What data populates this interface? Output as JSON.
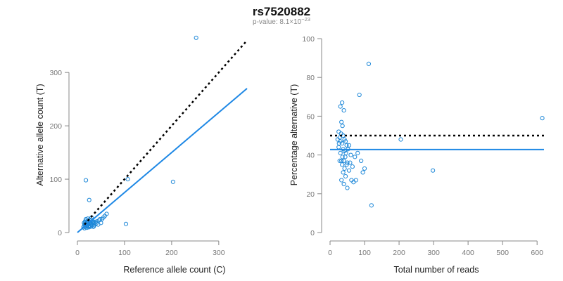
{
  "title": "rs7520882",
  "subtitle_prefix": "p-value: 8.1×10",
  "subtitle_exp": "−23",
  "colors": {
    "points": "#1E88D8",
    "fit": "#1E88E5",
    "reference": "#000000"
  },
  "chart_data": [
    {
      "type": "scatter",
      "xlabel": "Reference allele count (C)",
      "ylabel": "Alternative allele count (T)",
      "xlim": [
        0,
        360
      ],
      "ylim": [
        0,
        370
      ],
      "xticks": [
        0,
        100,
        200,
        300
      ],
      "yticks": [
        0,
        100,
        200,
        300
      ],
      "grid": false,
      "points": [
        [
          18,
          98
        ],
        [
          25,
          61
        ],
        [
          252,
          365
        ],
        [
          107,
          100
        ],
        [
          203,
          95
        ],
        [
          103,
          16
        ],
        [
          13,
          10
        ],
        [
          14,
          12
        ],
        [
          15,
          15
        ],
        [
          15,
          8
        ],
        [
          16,
          20
        ],
        [
          17,
          22
        ],
        [
          17,
          11
        ],
        [
          18,
          16
        ],
        [
          19,
          14
        ],
        [
          20,
          18
        ],
        [
          20,
          9
        ],
        [
          21,
          12
        ],
        [
          22,
          19
        ],
        [
          23,
          15
        ],
        [
          24,
          12
        ],
        [
          25,
          17
        ],
        [
          26,
          20
        ],
        [
          27,
          13
        ],
        [
          28,
          22
        ],
        [
          29,
          16
        ],
        [
          30,
          24
        ],
        [
          31,
          14
        ],
        [
          32,
          19
        ],
        [
          33,
          21
        ],
        [
          34,
          11
        ],
        [
          35,
          17
        ],
        [
          36,
          14
        ],
        [
          38,
          20
        ],
        [
          40,
          17
        ],
        [
          42,
          21
        ],
        [
          44,
          15
        ],
        [
          46,
          23
        ],
        [
          48,
          25
        ],
        [
          50,
          18
        ],
        [
          52,
          25
        ],
        [
          55,
          28
        ],
        [
          58,
          31
        ],
        [
          62,
          35
        ],
        [
          18,
          25
        ],
        [
          22,
          26
        ],
        [
          26,
          24
        ],
        [
          30,
          28
        ],
        [
          20,
          13
        ],
        [
          24,
          10
        ],
        [
          28,
          11
        ],
        [
          35,
          12
        ],
        [
          16,
          14
        ],
        [
          14,
          18
        ]
      ],
      "fit_line": {
        "x": [
          0,
          360
        ],
        "y": [
          0,
          270
        ]
      },
      "reference_line": {
        "x": [
          15,
          360
        ],
        "y": [
          15,
          360
        ]
      }
    },
    {
      "type": "scatter",
      "xlabel": "Total number of reads",
      "ylabel": "Percentage alternative (T)",
      "xlim": [
        0,
        620
      ],
      "ylim": [
        0,
        100
      ],
      "xticks": [
        0,
        100,
        200,
        300,
        400,
        500,
        600
      ],
      "yticks": [
        0,
        20,
        40,
        60,
        80,
        100
      ],
      "grid": false,
      "points": [
        [
          112,
          87
        ],
        [
          85,
          71
        ],
        [
          35,
          67
        ],
        [
          30,
          65
        ],
        [
          40,
          63
        ],
        [
          33,
          57
        ],
        [
          36,
          55
        ],
        [
          25,
          52
        ],
        [
          32,
          51
        ],
        [
          38,
          50
        ],
        [
          28,
          49
        ],
        [
          22,
          48
        ],
        [
          42,
          48
        ],
        [
          45,
          47
        ],
        [
          30,
          47
        ],
        [
          26,
          46
        ],
        [
          35,
          46
        ],
        [
          48,
          45
        ],
        [
          55,
          45
        ],
        [
          25,
          44
        ],
        [
          38,
          43
        ],
        [
          52,
          43
        ],
        [
          42,
          42
        ],
        [
          30,
          41
        ],
        [
          46,
          41
        ],
        [
          80,
          41
        ],
        [
          60,
          40
        ],
        [
          36,
          39
        ],
        [
          44,
          39
        ],
        [
          72,
          39
        ],
        [
          33,
          37
        ],
        [
          40,
          37
        ],
        [
          50,
          36
        ],
        [
          28,
          37
        ],
        [
          58,
          36
        ],
        [
          90,
          37
        ],
        [
          35,
          35
        ],
        [
          48,
          35
        ],
        [
          65,
          34
        ],
        [
          42,
          33
        ],
        [
          100,
          33
        ],
        [
          55,
          32
        ],
        [
          38,
          31
        ],
        [
          95,
          31
        ],
        [
          45,
          29
        ],
        [
          33,
          27
        ],
        [
          62,
          27
        ],
        [
          75,
          27
        ],
        [
          68,
          26
        ],
        [
          40,
          25
        ],
        [
          50,
          23
        ],
        [
          120,
          14
        ],
        [
          615,
          59
        ],
        [
          205,
          48
        ],
        [
          298,
          32
        ]
      ],
      "fit_line": {
        "x": [
          0,
          620
        ],
        "y": [
          42.8,
          42.8
        ]
      },
      "reference_line": {
        "x": [
          0,
          620
        ],
        "y": [
          50,
          50
        ]
      }
    }
  ]
}
